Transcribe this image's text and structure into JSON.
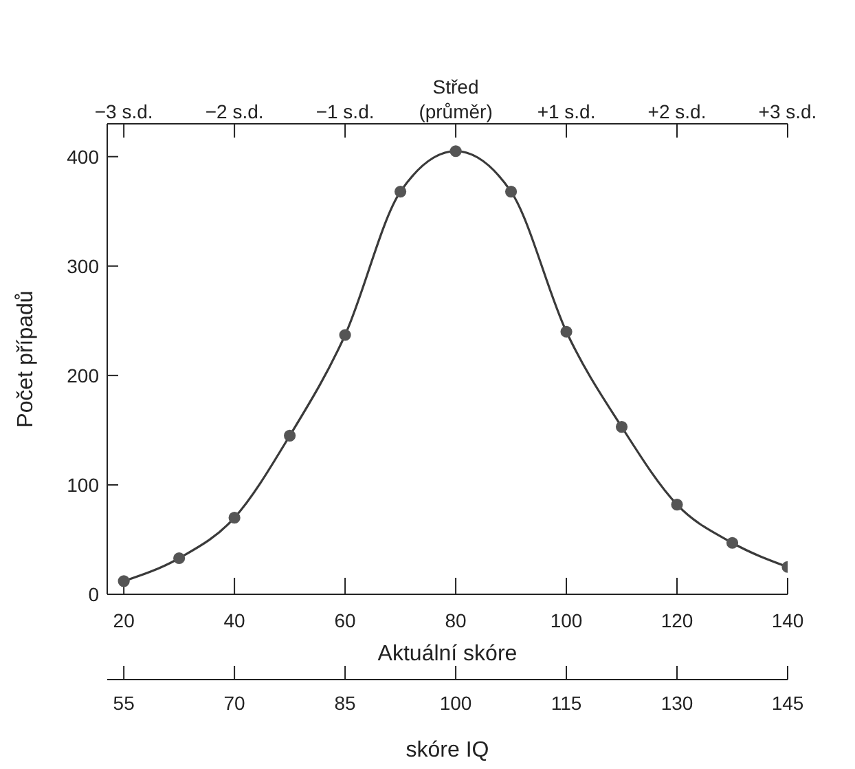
{
  "chart_data": {
    "type": "line",
    "xlabel": "Aktuální skóre",
    "ylabel": "Počet případů",
    "x2label": "skóre IQ",
    "x": [
      20,
      30,
      40,
      50,
      60,
      70,
      80,
      90,
      100,
      110,
      120,
      130,
      140
    ],
    "series": [
      {
        "color": "#3a3a3a",
        "values": [
          12,
          33,
          70,
          145,
          237,
          368,
          405,
          368,
          240,
          153,
          82,
          47,
          25
        ]
      }
    ],
    "xlim": [
      17,
      140
    ],
    "xticks": [
      20,
      40,
      60,
      80,
      100,
      120,
      140
    ],
    "ylim": [
      0,
      430
    ],
    "yticks": [
      0,
      100,
      200,
      300,
      400
    ],
    "x2lim": [
      52.75,
      145
    ],
    "x2ticks": [
      55,
      70,
      85,
      100,
      115,
      130,
      145
    ],
    "annotations": [
      {
        "text": "−3 s.d.",
        "x": 20
      },
      {
        "text": "−2 s.d.",
        "x": 40
      },
      {
        "text": "−1 s.d.",
        "x": 60
      },
      {
        "text": "Střed\n(průměr)",
        "x": 80
      },
      {
        "text": "+1 s.d.",
        "x": 100
      },
      {
        "text": "+2 s.d.",
        "x": 120
      },
      {
        "text": "+3 s.d.",
        "x": 140
      }
    ],
    "marker": "circle",
    "line_style": "solid",
    "grid": false
  }
}
